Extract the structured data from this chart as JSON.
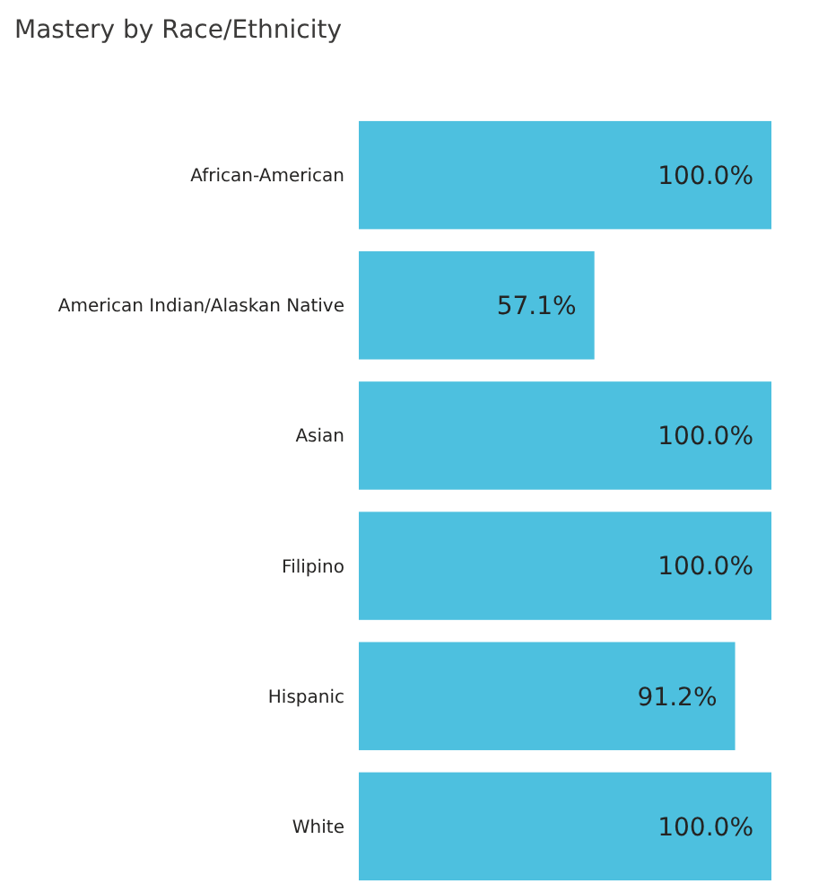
{
  "chart_data": {
    "type": "bar",
    "orientation": "horizontal",
    "title": "Mastery by Race/Ethnicity",
    "categories": [
      "African-American",
      "American Indian/Alaskan Native",
      "Asian",
      "Filipino",
      "Hispanic",
      "White"
    ],
    "values": [
      100,
      57.1,
      100,
      100,
      91.2,
      100
    ],
    "value_labels": [
      "100.0%",
      "57.1%",
      "100.0%",
      "100.0%",
      "91.2%",
      "100.0%"
    ],
    "color": "#4dc0df"
  }
}
